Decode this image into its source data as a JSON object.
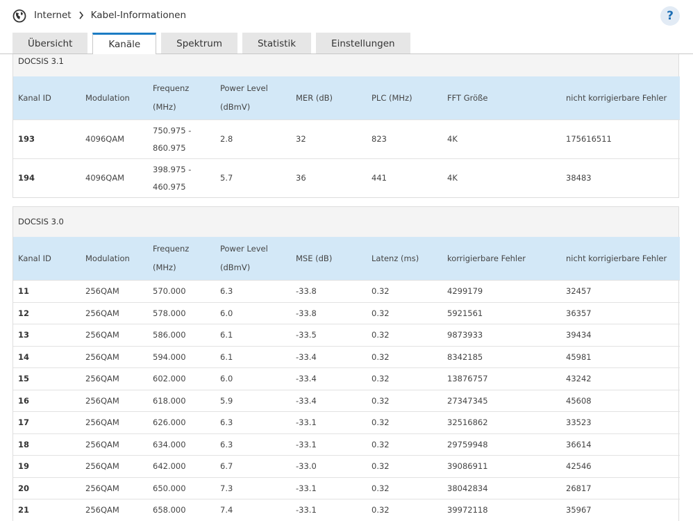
{
  "header": {
    "breadcrumb": [
      "Internet",
      "Kabel-Informationen"
    ],
    "help": "?"
  },
  "tabs": [
    "Übersicht",
    "Kanäle",
    "Spektrum",
    "Statistik",
    "Einstellungen"
  ],
  "sections": [
    {
      "title": "DOCSIS 3.1",
      "columns": [
        "Kanal ID",
        "Modulation",
        "Frequenz (MHz)",
        "Power Level (dBmV)",
        "MER (dB)",
        "PLC (MHz)",
        "FFT Größe",
        "nicht korrigierbare Fehler"
      ],
      "rows": [
        [
          "193",
          "4096QAM",
          "750.975 - 860.975",
          "2.8",
          "32",
          "823",
          "4K",
          "175616511"
        ],
        [
          "194",
          "4096QAM",
          "398.975 - 460.975",
          "5.7",
          "36",
          "441",
          "4K",
          "38483"
        ]
      ]
    },
    {
      "title": "DOCSIS 3.0",
      "columns": [
        "Kanal ID",
        "Modulation",
        "Frequenz (MHz)",
        "Power Level (dBmV)",
        "MSE (dB)",
        "Latenz (ms)",
        "korrigierbare Fehler",
        "nicht korrigierbare Fehler"
      ],
      "rows": [
        [
          "11",
          "256QAM",
          "570.000",
          "6.3",
          "-33.8",
          "0.32",
          "4299179",
          "32457"
        ],
        [
          "12",
          "256QAM",
          "578.000",
          "6.0",
          "-33.8",
          "0.32",
          "5921561",
          "36357"
        ],
        [
          "13",
          "256QAM",
          "586.000",
          "6.1",
          "-33.5",
          "0.32",
          "9873933",
          "39434"
        ],
        [
          "14",
          "256QAM",
          "594.000",
          "6.1",
          "-33.4",
          "0.32",
          "8342185",
          "45981"
        ],
        [
          "15",
          "256QAM",
          "602.000",
          "6.0",
          "-33.4",
          "0.32",
          "13876757",
          "43242"
        ],
        [
          "16",
          "256QAM",
          "618.000",
          "5.9",
          "-33.4",
          "0.32",
          "27347345",
          "45608"
        ],
        [
          "17",
          "256QAM",
          "626.000",
          "6.3",
          "-33.1",
          "0.32",
          "32516862",
          "33523"
        ],
        [
          "18",
          "256QAM",
          "634.000",
          "6.3",
          "-33.1",
          "0.32",
          "29759948",
          "36614"
        ],
        [
          "19",
          "256QAM",
          "642.000",
          "6.7",
          "-33.0",
          "0.32",
          "39086911",
          "42546"
        ],
        [
          "20",
          "256QAM",
          "650.000",
          "7.3",
          "-33.1",
          "0.32",
          "38042834",
          "26817"
        ],
        [
          "21",
          "256QAM",
          "658.000",
          "7.4",
          "-33.1",
          "0.32",
          "39972118",
          "35967"
        ]
      ]
    }
  ]
}
